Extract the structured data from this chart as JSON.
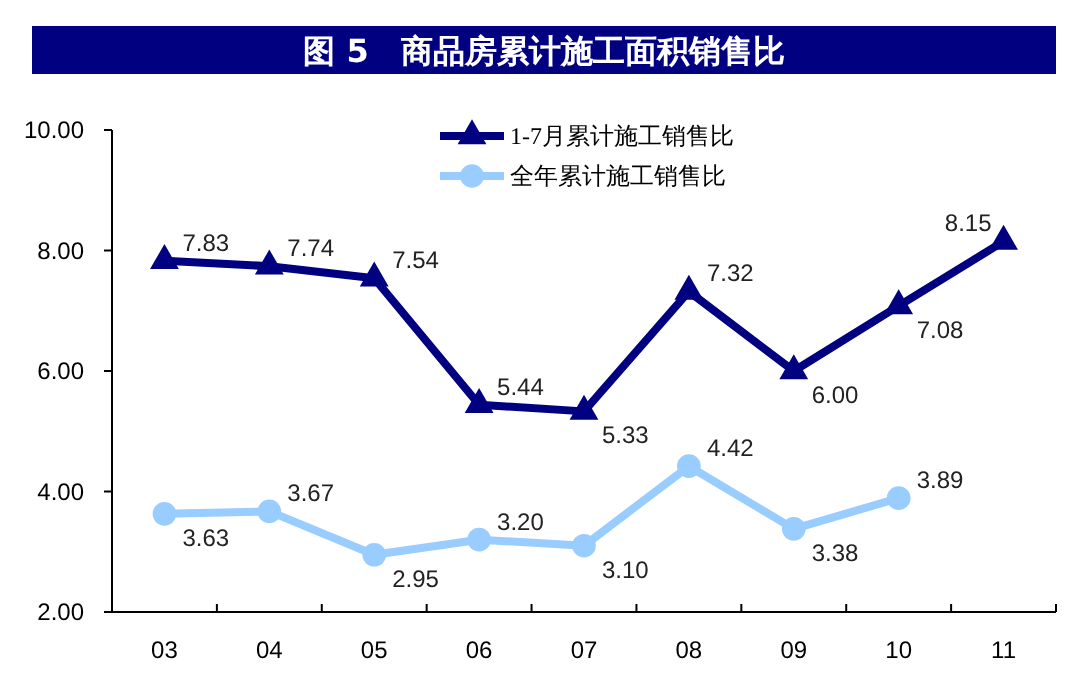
{
  "chart_data": {
    "type": "line",
    "title": "图 5　商品房累计施工面积销售比",
    "categories": [
      "03",
      "04",
      "05",
      "06",
      "07",
      "08",
      "09",
      "10",
      "11"
    ],
    "series": [
      {
        "name": "1-7月累计施工销售比",
        "color": "#000080",
        "marker": "triangle",
        "values": [
          7.83,
          7.74,
          7.54,
          5.44,
          5.33,
          7.32,
          6.0,
          7.08,
          8.15
        ],
        "value_labels": [
          "7.83",
          "7.74",
          "7.54",
          "5.44",
          "5.33",
          "7.32",
          "6.00",
          "7.08",
          "8.15"
        ]
      },
      {
        "name": "全年累计施工销售比",
        "color": "#99ccff",
        "marker": "circle",
        "values": [
          3.63,
          3.67,
          2.95,
          3.2,
          3.1,
          4.42,
          3.38,
          3.89,
          null
        ],
        "value_labels": [
          "3.63",
          "3.67",
          "2.95",
          "3.20",
          "3.10",
          "4.42",
          "3.38",
          "3.89",
          null
        ]
      }
    ],
    "ylim": [
      2,
      10
    ],
    "yticks": [
      {
        "value": 2,
        "label": "2.00"
      },
      {
        "value": 4,
        "label": "4.00"
      },
      {
        "value": 6,
        "label": "6.00"
      },
      {
        "value": 8,
        "label": "8.00"
      },
      {
        "value": 10,
        "label": "10.00"
      }
    ],
    "legend": "top",
    "grid": false
  }
}
